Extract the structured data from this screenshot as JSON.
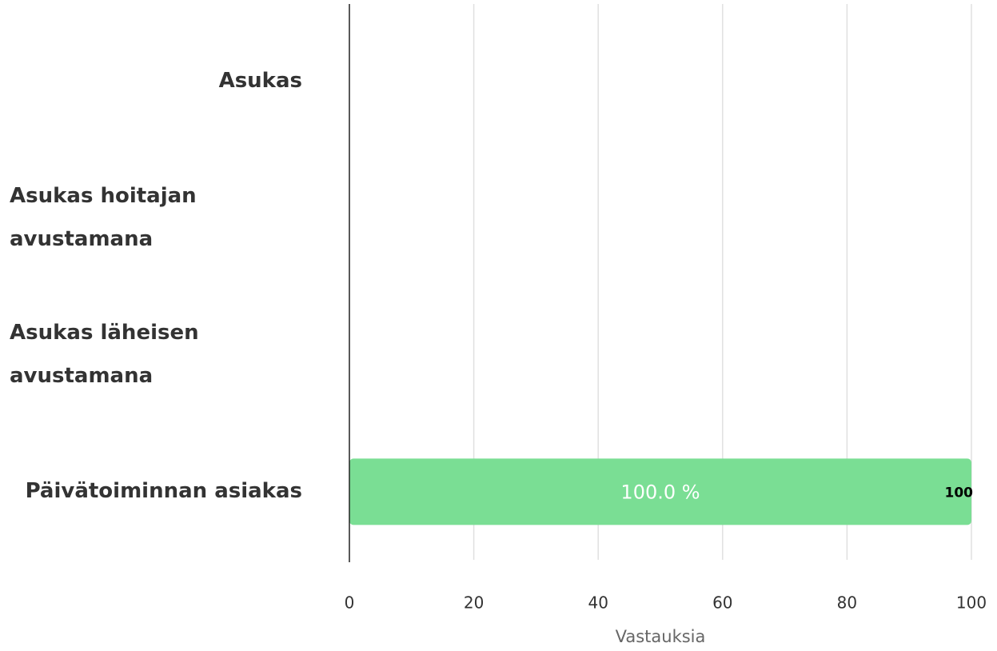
{
  "chart_data": {
    "type": "bar",
    "orientation": "horizontal",
    "categories": [
      "Asukas",
      "Asukas hoitajan avustamana",
      "Asukas läheisen avustamana",
      "Päivätoiminnan asiakas"
    ],
    "values": [
      0,
      0,
      0,
      100
    ],
    "percentages": [
      0,
      0,
      0,
      100
    ],
    "percentage_labels": [
      null,
      null,
      null,
      "100.0 %"
    ],
    "color": "#7ade94",
    "xlabel": "Vastauksia",
    "xlim": [
      0,
      100
    ],
    "xticks": [
      0,
      20,
      40,
      60,
      80,
      100
    ],
    "grid": true
  }
}
